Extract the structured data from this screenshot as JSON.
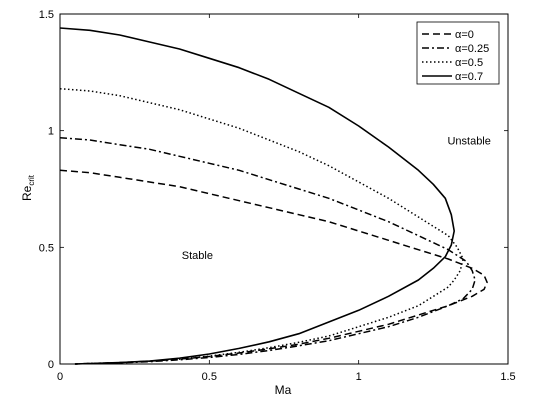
{
  "chart_data": {
    "type": "line",
    "xlabel": "Ma",
    "ylabel": "Re",
    "ylabel_sub": "crit",
    "xlim": [
      0,
      1.5
    ],
    "ylim": [
      0,
      1.5
    ],
    "xticks": [
      "0",
      "0.5",
      "1",
      "1.5"
    ],
    "yticks": [
      "0",
      "0.5",
      "1",
      "1.5"
    ],
    "grid": false,
    "legend_position": "top-right",
    "annotations": [
      {
        "text": "Unstable",
        "x": 1.37,
        "y": 0.94
      },
      {
        "text": "Stable",
        "x": 0.46,
        "y": 0.45
      }
    ],
    "series": [
      {
        "name": "α=0",
        "style": "dashed",
        "x": [
          0.0,
          0.1,
          0.2,
          0.3,
          0.4,
          0.5,
          0.6,
          0.7,
          0.8,
          0.9,
          1.0,
          1.1,
          1.2,
          1.3,
          1.38,
          1.42,
          1.43,
          1.42,
          1.38,
          1.3,
          1.2,
          1.1,
          1.0,
          0.9,
          0.8,
          0.7,
          0.6,
          0.5,
          0.4,
          0.3,
          0.2,
          0.1,
          0.05
        ],
        "y": [
          0.83,
          0.82,
          0.8,
          0.78,
          0.76,
          0.73,
          0.7,
          0.67,
          0.64,
          0.61,
          0.57,
          0.53,
          0.49,
          0.45,
          0.41,
          0.38,
          0.35,
          0.32,
          0.29,
          0.25,
          0.21,
          0.17,
          0.14,
          0.11,
          0.085,
          0.065,
          0.047,
          0.032,
          0.021,
          0.012,
          0.006,
          0.002,
          0.0
        ]
      },
      {
        "name": "α=0.25",
        "style": "dashdot",
        "x": [
          0.0,
          0.1,
          0.2,
          0.3,
          0.4,
          0.5,
          0.6,
          0.7,
          0.8,
          0.9,
          1.0,
          1.1,
          1.2,
          1.3,
          1.36,
          1.38,
          1.39,
          1.38,
          1.35,
          1.3,
          1.2,
          1.1,
          1.0,
          0.9,
          0.8,
          0.7,
          0.6,
          0.5,
          0.4,
          0.3,
          0.2,
          0.1,
          0.05
        ],
        "y": [
          0.97,
          0.96,
          0.94,
          0.92,
          0.89,
          0.86,
          0.83,
          0.79,
          0.75,
          0.71,
          0.66,
          0.61,
          0.55,
          0.49,
          0.44,
          0.4,
          0.36,
          0.32,
          0.28,
          0.25,
          0.2,
          0.16,
          0.13,
          0.1,
          0.078,
          0.058,
          0.041,
          0.028,
          0.018,
          0.01,
          0.005,
          0.002,
          0.0
        ]
      },
      {
        "name": "α=0.5",
        "style": "dotted",
        "x": [
          0.0,
          0.1,
          0.2,
          0.3,
          0.4,
          0.5,
          0.6,
          0.7,
          0.8,
          0.9,
          1.0,
          1.1,
          1.2,
          1.3,
          1.33,
          1.35,
          1.34,
          1.32,
          1.3,
          1.2,
          1.1,
          1.0,
          0.9,
          0.8,
          0.7,
          0.6,
          0.5,
          0.4,
          0.3,
          0.2,
          0.1,
          0.05
        ],
        "y": [
          1.18,
          1.17,
          1.15,
          1.12,
          1.09,
          1.05,
          1.01,
          0.96,
          0.91,
          0.85,
          0.78,
          0.71,
          0.63,
          0.55,
          0.5,
          0.45,
          0.4,
          0.36,
          0.33,
          0.25,
          0.2,
          0.16,
          0.12,
          0.093,
          0.07,
          0.05,
          0.034,
          0.021,
          0.012,
          0.006,
          0.002,
          0.0
        ]
      },
      {
        "name": "α=0.7",
        "style": "solid",
        "x": [
          0.0,
          0.1,
          0.2,
          0.3,
          0.4,
          0.5,
          0.6,
          0.7,
          0.8,
          0.9,
          1.0,
          1.1,
          1.2,
          1.25,
          1.29,
          1.31,
          1.32,
          1.31,
          1.29,
          1.25,
          1.2,
          1.1,
          1.0,
          0.9,
          0.8,
          0.7,
          0.6,
          0.5,
          0.4,
          0.3,
          0.2,
          0.1,
          0.05
        ],
        "y": [
          1.44,
          1.43,
          1.41,
          1.38,
          1.35,
          1.31,
          1.27,
          1.22,
          1.16,
          1.1,
          1.02,
          0.93,
          0.83,
          0.77,
          0.71,
          0.64,
          0.57,
          0.51,
          0.46,
          0.41,
          0.36,
          0.29,
          0.23,
          0.18,
          0.13,
          0.095,
          0.067,
          0.043,
          0.025,
          0.013,
          0.006,
          0.002,
          0.0
        ]
      }
    ]
  }
}
